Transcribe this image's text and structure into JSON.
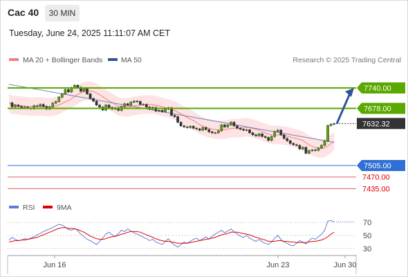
{
  "header": {
    "instrument": "Cac 40",
    "interval": "30 MIN",
    "timestamp": "Tuesday, June 24, 2025 11:11:07 AM CET"
  },
  "legend": {
    "ma20_label": "MA 20 + Bollinger Bands",
    "ma20_color": "#f08080",
    "ma50_label": "MA 50",
    "ma50_color": "#2f5597",
    "credit": "Research © 2025 Trading Central"
  },
  "rsi_legend": {
    "rsi_label": "RSI",
    "rsi_color": "#5b7fd6",
    "ma9_label": "9MA",
    "ma9_color": "#e00000"
  },
  "chart_data": [
    {
      "type": "candlestick",
      "x_tick_labels": [
        "Jun 16",
        "Jun 23",
        "Jun 30"
      ],
      "levels": [
        {
          "label": "7740.00",
          "value": 7740.0,
          "kind": "resistance",
          "color": "#5aa800"
        },
        {
          "label": "7678.00",
          "value": 7678.0,
          "kind": "resistance",
          "color": "#5aa800"
        },
        {
          "label": "7632.32",
          "value": 7632.32,
          "kind": "last-price",
          "color": "#333333"
        },
        {
          "label": "7505.00",
          "value": 7505.0,
          "kind": "pivot",
          "color": "#2f6fd6"
        },
        {
          "label": "7470.00",
          "value": 7470.0,
          "kind": "support",
          "color": "#e06060"
        },
        {
          "label": "7435.00",
          "value": 7435.0,
          "kind": "support",
          "color": "#e06060"
        }
      ],
      "close_path": [
        7695,
        7683,
        7688,
        7684,
        7680,
        7682,
        7679,
        7677,
        7686,
        7685,
        7690,
        7684,
        7676,
        7683,
        7694,
        7699,
        7712,
        7722,
        7735,
        7728,
        7741,
        7748,
        7742,
        7730,
        7738,
        7722,
        7708,
        7700,
        7688,
        7682,
        7673,
        7688,
        7681,
        7676,
        7680,
        7672,
        7684,
        7692,
        7688,
        7697,
        7700,
        7699,
        7690,
        7690,
        7682,
        7676,
        7681,
        7670,
        7672,
        7668,
        7676,
        7680,
        7657,
        7653,
        7636,
        7625,
        7622,
        7620,
        7624,
        7618,
        7616,
        7612,
        7620,
        7614,
        7607,
        7604,
        7604,
        7610,
        7628,
        7622,
        7628,
        7636,
        7625,
        7618,
        7615,
        7612,
        7613,
        7604,
        7598,
        7595,
        7601,
        7593,
        7590,
        7581,
        7593,
        7608,
        7612,
        7598,
        7587,
        7580,
        7572,
        7568,
        7566,
        7555,
        7560,
        7542,
        7550,
        7552,
        7551,
        7558,
        7566,
        7579,
        7626,
        7630,
        7632
      ],
      "ma50_start": 7751,
      "ma50_end": 7575,
      "bollinger_width": 28
    },
    {
      "type": "line",
      "name": "RSI",
      "yticks": [
        70,
        50,
        30
      ],
      "levels": [
        70,
        50,
        30
      ],
      "series": [
        {
          "name": "RSI",
          "color": "#5b7fd6",
          "values": [
            43,
            47,
            44,
            42,
            43,
            45,
            44,
            46,
            48,
            51,
            53,
            56,
            58,
            60,
            62,
            65,
            67,
            66,
            63,
            59,
            58,
            61,
            57,
            52,
            48,
            44,
            42,
            39,
            36,
            41,
            46,
            52,
            55,
            51,
            48,
            53,
            58,
            56,
            60,
            57,
            54,
            52,
            50,
            47,
            45,
            42,
            44,
            40,
            38,
            36,
            41,
            45,
            39,
            35,
            32,
            36,
            40,
            38,
            41,
            44,
            46,
            42,
            45,
            48,
            44,
            49,
            52,
            55,
            58,
            54,
            57,
            60,
            56,
            52,
            49,
            47,
            50,
            46,
            43,
            41,
            44,
            40,
            38,
            36,
            40,
            46,
            50,
            44,
            40,
            38,
            35,
            34,
            38,
            42,
            40,
            37,
            42,
            46,
            44,
            48,
            52,
            58,
            72,
            73,
            71
          ]
        },
        {
          "name": "9MA",
          "color": "#e00000",
          "values": [
            40,
            41,
            42,
            42,
            43,
            43,
            44,
            45,
            46,
            47,
            49,
            51,
            53,
            55,
            57,
            59,
            61,
            62,
            62,
            61,
            61,
            60,
            59,
            57,
            55,
            52,
            49,
            47,
            45,
            44,
            44,
            45,
            47,
            48,
            49,
            50,
            52,
            53,
            55,
            56,
            56,
            56,
            55,
            53,
            51,
            49,
            47,
            45,
            43,
            42,
            41,
            41,
            40,
            39,
            38,
            38,
            38,
            38,
            39,
            40,
            41,
            42,
            43,
            44,
            45,
            46,
            47,
            49,
            51,
            52,
            53,
            55,
            55,
            55,
            54,
            53,
            52,
            51,
            49,
            47,
            46,
            44,
            43,
            41,
            41,
            41,
            42,
            42,
            41,
            41,
            40,
            40,
            39,
            39,
            39,
            39,
            40,
            41,
            41,
            42,
            43,
            45,
            48,
            52,
            55
          ]
        }
      ]
    }
  ]
}
